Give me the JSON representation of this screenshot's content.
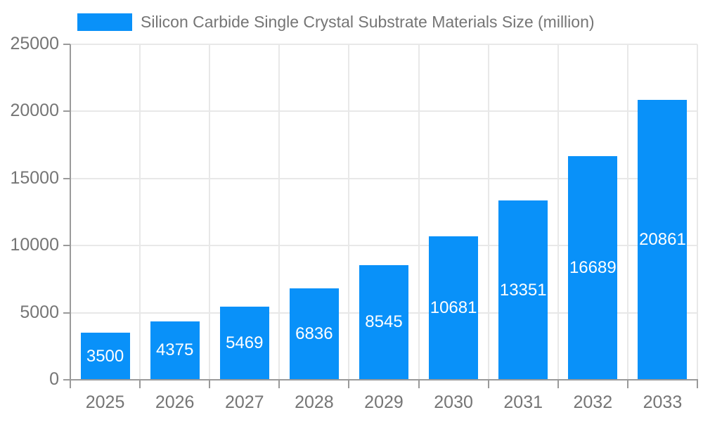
{
  "chart_data": {
    "type": "bar",
    "title": "Silicon Carbide Single Crystal Substrate Materials Size (million)",
    "categories": [
      "2025",
      "2026",
      "2027",
      "2028",
      "2029",
      "2030",
      "2031",
      "2032",
      "2033"
    ],
    "values": [
      3500,
      4375,
      5469,
      6836,
      8545,
      10681,
      13351,
      16689,
      20861
    ],
    "xlabel": "",
    "ylabel": "",
    "ylim": [
      0,
      25000
    ],
    "yticks": [
      0,
      5000,
      10000,
      15000,
      20000,
      25000
    ],
    "grid": true,
    "legend_position": "top-left",
    "bar_color": "#0991f9",
    "value_label_color": "#ffffff",
    "axis_text_color": "#757575",
    "grid_color": "#e8e8e8",
    "axis_line_color": "#9a9a9a"
  },
  "legend": {
    "label": "Silicon Carbide Single Crystal Substrate Materials Size (million)"
  }
}
